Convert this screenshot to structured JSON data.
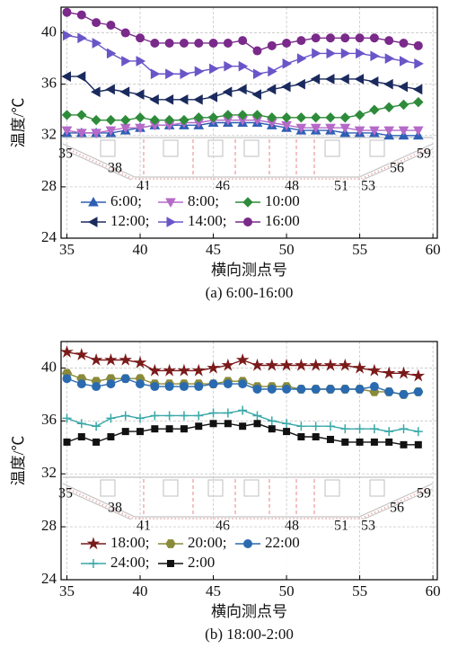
{
  "chart_data": [
    {
      "type": "line",
      "caption": "(a) 6:00-16:00",
      "xlabel": "横向测点号",
      "ylabel": "温度/℃",
      "xlim": [
        34.6,
        60.3
      ],
      "ylim": [
        24,
        42
      ],
      "xticks": [
        35,
        40,
        45,
        50,
        55,
        60
      ],
      "yticks": [
        24,
        28,
        32,
        36,
        40
      ],
      "grid": true,
      "legend": "lower left",
      "annotations": [
        "35",
        "38",
        "41",
        "46",
        "48",
        "51",
        "53",
        "56",
        "59"
      ],
      "x": [
        35,
        36,
        37,
        38,
        39,
        40,
        41,
        42,
        43,
        44,
        45,
        46,
        47,
        48,
        49,
        50,
        51,
        52,
        53,
        54,
        55,
        56,
        57,
        58,
        59
      ],
      "series": [
        {
          "name": "6:00;",
          "color": "#2e5fb5",
          "marker": "triangle-up",
          "values": [
            32.2,
            32.2,
            32.2,
            32.2,
            32.4,
            32.6,
            32.8,
            32.8,
            32.8,
            32.8,
            33.0,
            33.0,
            33.0,
            33.0,
            32.8,
            32.6,
            32.4,
            32.4,
            32.4,
            32.2,
            32.2,
            32.2,
            32.0,
            32.0,
            32.0
          ]
        },
        {
          "name": "8:00;",
          "color": "#b56ac8",
          "marker": "triangle-down",
          "values": [
            32.4,
            32.2,
            32.2,
            32.4,
            32.6,
            32.6,
            32.8,
            32.8,
            33.0,
            33.0,
            33.2,
            33.2,
            33.2,
            33.2,
            33.0,
            32.8,
            32.6,
            32.6,
            32.6,
            32.6,
            32.4,
            32.4,
            32.4,
            32.4,
            32.4
          ]
        },
        {
          "name": "10:00",
          "color": "#2e8b3a",
          "marker": "diamond",
          "values": [
            33.6,
            33.6,
            33.2,
            33.2,
            33.2,
            33.4,
            33.2,
            33.2,
            33.2,
            33.4,
            33.4,
            33.6,
            33.6,
            33.6,
            33.4,
            33.4,
            33.4,
            33.4,
            33.4,
            33.4,
            33.6,
            34.0,
            34.2,
            34.4,
            34.6
          ]
        },
        {
          "name": "12:00;",
          "color": "#1a2a5e",
          "marker": "triangle-left",
          "values": [
            36.6,
            36.6,
            35.4,
            35.6,
            35.4,
            35.2,
            34.8,
            34.8,
            34.8,
            34.8,
            35.0,
            35.4,
            35.6,
            35.2,
            35.6,
            35.8,
            36.0,
            36.4,
            36.4,
            36.4,
            36.4,
            36.2,
            36.0,
            35.8,
            35.6
          ]
        },
        {
          "name": "14:00;",
          "color": "#6a55c8",
          "marker": "triangle-right",
          "values": [
            39.8,
            39.6,
            39.2,
            38.4,
            37.8,
            37.8,
            36.8,
            36.8,
            36.8,
            37.0,
            37.2,
            37.4,
            37.4,
            36.8,
            37.0,
            37.6,
            38.0,
            38.4,
            38.4,
            38.4,
            38.4,
            38.2,
            38.0,
            37.8,
            37.6
          ]
        },
        {
          "name": "16:00",
          "color": "#7a2a8a",
          "marker": "circle",
          "values": [
            41.6,
            41.4,
            40.8,
            40.6,
            40.0,
            39.6,
            39.2,
            39.2,
            39.2,
            39.2,
            39.2,
            39.2,
            39.4,
            38.6,
            39.0,
            39.2,
            39.4,
            39.6,
            39.6,
            39.6,
            39.6,
            39.6,
            39.4,
            39.2,
            39.0
          ]
        }
      ]
    },
    {
      "type": "line",
      "caption": "(b) 18:00-2:00",
      "xlabel": "横向测点号",
      "ylabel": "温度/℃",
      "xlim": [
        34.6,
        60.3
      ],
      "ylim": [
        24,
        42
      ],
      "xticks": [
        35,
        40,
        45,
        50,
        55,
        60
      ],
      "yticks": [
        24,
        28,
        32,
        36,
        40
      ],
      "grid": true,
      "legend": "lower left",
      "annotations": [
        "35",
        "38",
        "41",
        "46",
        "48",
        "51",
        "53",
        "56",
        "59"
      ],
      "x": [
        35,
        36,
        37,
        38,
        39,
        40,
        41,
        42,
        43,
        44,
        45,
        46,
        47,
        48,
        49,
        50,
        51,
        52,
        53,
        54,
        55,
        56,
        57,
        58,
        59
      ],
      "series": [
        {
          "name": "18:00;",
          "color": "#7a1a1a",
          "marker": "star",
          "values": [
            41.2,
            41.0,
            40.6,
            40.6,
            40.6,
            40.4,
            39.8,
            39.8,
            39.8,
            39.8,
            40.0,
            40.2,
            40.6,
            40.2,
            40.2,
            40.2,
            40.2,
            40.2,
            40.2,
            40.2,
            40.0,
            39.8,
            39.6,
            39.6,
            39.4
          ]
        },
        {
          "name": "20:00;",
          "color": "#8a8a3a",
          "marker": "hexagon",
          "values": [
            39.6,
            39.2,
            39.0,
            39.2,
            39.2,
            39.2,
            38.8,
            38.8,
            38.8,
            38.8,
            38.8,
            39.0,
            39.0,
            38.6,
            38.6,
            38.6,
            38.4,
            38.4,
            38.4,
            38.4,
            38.4,
            38.2,
            38.2,
            38.0,
            38.2
          ]
        },
        {
          "name": "22:00",
          "color": "#2a6ab0",
          "marker": "circle",
          "values": [
            39.2,
            38.8,
            38.6,
            38.8,
            39.2,
            38.8,
            38.6,
            38.6,
            38.6,
            38.6,
            38.8,
            38.8,
            38.8,
            38.4,
            38.4,
            38.4,
            38.4,
            38.4,
            38.4,
            38.4,
            38.4,
            38.6,
            38.2,
            38.0,
            38.2
          ]
        },
        {
          "name": "24:00;",
          "color": "#3aa8a8",
          "marker": "plus",
          "values": [
            36.2,
            35.8,
            35.6,
            36.2,
            36.4,
            36.2,
            36.4,
            36.4,
            36.4,
            36.4,
            36.6,
            36.6,
            36.8,
            36.4,
            36.0,
            35.8,
            35.6,
            35.6,
            35.6,
            35.4,
            35.4,
            35.4,
            35.2,
            35.4,
            35.2
          ]
        },
        {
          "name": "2:00",
          "color": "#111111",
          "marker": "square",
          "values": [
            34.4,
            34.8,
            34.4,
            34.8,
            35.2,
            35.2,
            35.4,
            35.4,
            35.4,
            35.6,
            35.8,
            35.8,
            35.6,
            35.8,
            35.4,
            35.2,
            34.8,
            34.8,
            34.6,
            34.4,
            34.4,
            34.4,
            34.4,
            34.2,
            34.2
          ]
        }
      ]
    }
  ]
}
